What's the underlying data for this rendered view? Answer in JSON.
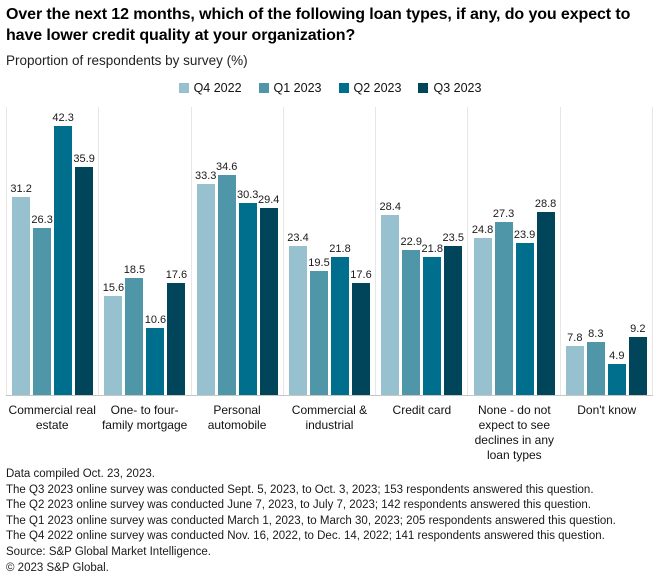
{
  "header": {
    "title": "Over the next 12 months, which of the following loan types, if any, do you expect to have lower credit quality at your organization?",
    "subtitle": "Proportion of respondents by survey (%)"
  },
  "chart_data": {
    "type": "bar",
    "title": "Over the next 12 months, which of the following loan types, if any, do you expect to have lower credit quality at your organization?",
    "subtitle": "Proportion of respondents by survey (%)",
    "ylabel": "Proportion of respondents (%)",
    "xlabel": "",
    "ylim": [
      0,
      45.5
    ],
    "grid": "vertical-group-separators",
    "legend_position": "top-center",
    "value_labels": true,
    "categories": [
      "Commercial real estate",
      "One- to four-family mortgage",
      "Personal automobile",
      "Commercial & industrial",
      "Credit card",
      "None - do not expect to see declines in any loan types",
      "Don't know"
    ],
    "series": [
      {
        "name": "Q4 2022",
        "color": "#97c1cf",
        "values": [
          31.2,
          15.6,
          33.3,
          23.4,
          28.4,
          24.8,
          7.8
        ]
      },
      {
        "name": "Q1 2023",
        "color": "#4e96a8",
        "values": [
          26.3,
          18.5,
          34.6,
          19.5,
          22.9,
          27.3,
          8.3
        ]
      },
      {
        "name": "Q2 2023",
        "color": "#006f8e",
        "values": [
          42.3,
          10.6,
          30.3,
          21.8,
          21.8,
          23.9,
          4.9
        ]
      },
      {
        "name": "Q3 2023",
        "color": "#00455a",
        "values": [
          35.9,
          17.6,
          29.4,
          17.6,
          23.5,
          28.8,
          9.2
        ]
      }
    ]
  },
  "colors": {
    "axis_line": "#c6c6c6",
    "separator_line": "#e7e7e7",
    "text": "#1a1a1a"
  },
  "footer": {
    "lines": [
      "Data compiled Oct. 23, 2023.",
      "The Q3 2023 online survey was conducted Sept. 5, 2023, to Oct. 3, 2023; 153 respondents answered this question.",
      "The Q2 2023 online survey was conducted June 7, 2023, to July 7, 2023; 142 respondents answered this question.",
      "The Q1 2023 online survey was conducted March 1, 2023, to March 30, 2023; 205 respondents answered this question.",
      "The Q4 2022 online survey was conducted Nov. 16, 2022, to Dec. 14, 2022; 141 respondents answered this question.",
      "Source: S&P Global Market Intelligence.",
      "© 2023 S&P Global."
    ]
  }
}
